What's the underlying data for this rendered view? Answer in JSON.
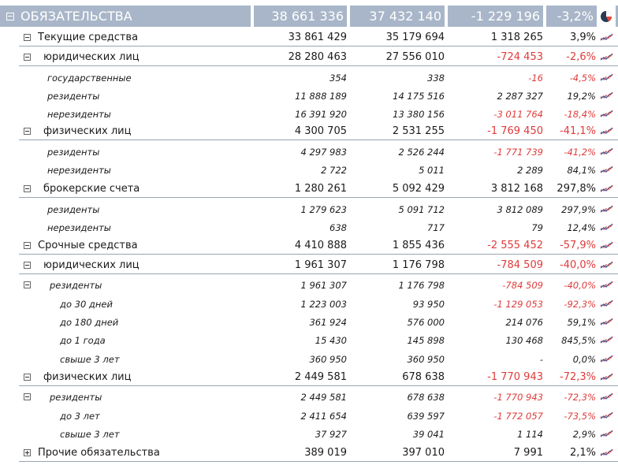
{
  "header": {
    "label": "ОБЯЗАТЕЛЬСТВА",
    "v1": "38 661 336",
    "v2": "37 432 140",
    "v3": "-1 229 196",
    "v4": "-3,2%",
    "icon": "pie-chart-icon"
  },
  "rows": [
    {
      "level": 1,
      "toggle": "minus",
      "label": "Текущие средства",
      "v1": "33 861 429",
      "v2": "35 179 694",
      "v3": "1 318 265",
      "v4": "3,9%",
      "neg": false,
      "line": true
    },
    {
      "level": 2,
      "toggle": "minus",
      "label": "юридических лиц",
      "v1": "28 280 463",
      "v2": "27 556 010",
      "v3": "-724 453",
      "v4": "-2,6%",
      "neg": true,
      "line": true
    },
    {
      "level": 3,
      "toggle": "",
      "label": "государственные",
      "v1": "354",
      "v2": "338",
      "v3": "-16",
      "v4": "-4,5%",
      "neg": true,
      "line": false
    },
    {
      "level": 3,
      "toggle": "",
      "label": "резиденты",
      "v1": "11 888 189",
      "v2": "14 175 516",
      "v3": "2 287 327",
      "v4": "19,2%",
      "neg": false,
      "line": false
    },
    {
      "level": 3,
      "toggle": "",
      "label": "нерезиденты",
      "v1": "16 391 920",
      "v2": "13 380 156",
      "v3": "-3 011 764",
      "v4": "-18,4%",
      "neg": true,
      "line": false
    },
    {
      "level": 2,
      "toggle": "minus",
      "label": "физических лиц",
      "v1": "4 300 705",
      "v2": "2 531 255",
      "v3": "-1 769 450",
      "v4": "-41,1%",
      "neg": true,
      "line": true
    },
    {
      "level": 3,
      "toggle": "",
      "label": "резиденты",
      "v1": "4 297 983",
      "v2": "2 526 244",
      "v3": "-1 771 739",
      "v4": "-41,2%",
      "neg": true,
      "line": false
    },
    {
      "level": 3,
      "toggle": "",
      "label": "нерезиденты",
      "v1": "2 722",
      "v2": "5 011",
      "v3": "2 289",
      "v4": "84,1%",
      "neg": false,
      "line": false
    },
    {
      "level": 2,
      "toggle": "minus",
      "label": "брокерские счета",
      "v1": "1 280 261",
      "v2": "5 092 429",
      "v3": "3 812 168",
      "v4": "297,8%",
      "neg": false,
      "line": true
    },
    {
      "level": 3,
      "toggle": "",
      "label": "резиденты",
      "v1": "1 279 623",
      "v2": "5 091 712",
      "v3": "3 812 089",
      "v4": "297,9%",
      "neg": false,
      "line": false
    },
    {
      "level": 3,
      "toggle": "",
      "label": "нерезиденты",
      "v1": "638",
      "v2": "717",
      "v3": "79",
      "v4": "12,4%",
      "neg": false,
      "line": false
    },
    {
      "level": 1,
      "toggle": "minus",
      "label": "Срочные средства",
      "v1": "4 410 888",
      "v2": "1 855 436",
      "v3": "-2 555 452",
      "v4": "-57,9%",
      "neg": true,
      "line": true
    },
    {
      "level": 2,
      "toggle": "minus",
      "label": "юридических лиц",
      "v1": "1 961 307",
      "v2": "1 176 798",
      "v3": "-784 509",
      "v4": "-40,0%",
      "neg": true,
      "line": true
    },
    {
      "level": "3t",
      "toggle": "minus",
      "label": "резиденты",
      "v1": "1 961 307",
      "v2": "1 176 798",
      "v3": "-784 509",
      "v4": "-40,0%",
      "neg": true,
      "line": false
    },
    {
      "level": 4,
      "toggle": "",
      "label": "до 30 дней",
      "v1": "1 223 003",
      "v2": "93 950",
      "v3": "-1 129 053",
      "v4": "-92,3%",
      "neg": true,
      "line": false
    },
    {
      "level": 4,
      "toggle": "",
      "label": "до 180 дней",
      "v1": "361 924",
      "v2": "576 000",
      "v3": "214 076",
      "v4": "59,1%",
      "neg": false,
      "line": false
    },
    {
      "level": 4,
      "toggle": "",
      "label": "до 1 года",
      "v1": "15 430",
      "v2": "145 898",
      "v3": "130 468",
      "v4": "845,5%",
      "neg": false,
      "line": false
    },
    {
      "level": 4,
      "toggle": "",
      "label": "свыше 3 лет",
      "v1": "360 950",
      "v2": "360 950",
      "v3": "-",
      "v4": "0,0%",
      "neg": false,
      "line": false
    },
    {
      "level": 2,
      "toggle": "minus",
      "label": "физических лиц",
      "v1": "2 449 581",
      "v2": "678 638",
      "v3": "-1 770 943",
      "v4": "-72,3%",
      "neg": true,
      "line": true
    },
    {
      "level": "3t",
      "toggle": "minus",
      "label": "резиденты",
      "v1": "2 449 581",
      "v2": "678 638",
      "v3": "-1 770 943",
      "v4": "-72,3%",
      "neg": true,
      "line": false
    },
    {
      "level": 4,
      "toggle": "",
      "label": "до 3 лет",
      "v1": "2 411 654",
      "v2": "639 597",
      "v3": "-1 772 057",
      "v4": "-73,5%",
      "neg": true,
      "line": false
    },
    {
      "level": 4,
      "toggle": "",
      "label": "свыше 3 лет",
      "v1": "37 927",
      "v2": "39 041",
      "v3": "1 114",
      "v4": "2,9%",
      "neg": false,
      "line": false
    },
    {
      "level": 1,
      "toggle": "plus",
      "label": "Прочие обязательства",
      "v1": "389 019",
      "v2": "397 010",
      "v3": "7 991",
      "v4": "2,1%",
      "neg": false,
      "line": true
    }
  ],
  "row_icon": "trend-chart-icon",
  "colors": {
    "header_bg": "#a9b6c9",
    "negative": "#e03a3a",
    "trend_red": "#d9342b",
    "trend_blue": "#3a5f9e"
  }
}
